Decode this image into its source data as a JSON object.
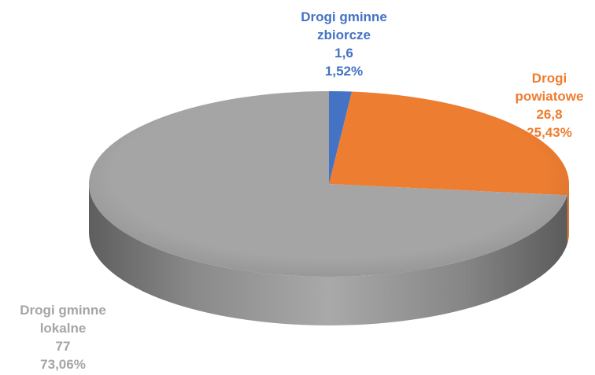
{
  "chart_data": {
    "type": "pie",
    "style": "3d",
    "categories": [
      "Drogi gminne zbiorcze",
      "Drogi powiatowe",
      "Drogi gminne lokalne"
    ],
    "values": [
      1.6,
      26.8,
      77
    ],
    "percentages": [
      "1,52%",
      "25,43%",
      "73,06%"
    ],
    "colors": [
      "#4472C4",
      "#ED7D31",
      "#A5A5A5"
    ],
    "data_labels": [
      {
        "lines": [
          "Drogi gminne",
          "zbiorcze",
          "1,6",
          "1,52%"
        ]
      },
      {
        "lines": [
          "Drogi",
          "powiatowe",
          "26,8",
          "25,43%"
        ]
      },
      {
        "lines": [
          "Drogi gminne",
          "lokalne",
          "77",
          "73,06%"
        ]
      }
    ]
  }
}
